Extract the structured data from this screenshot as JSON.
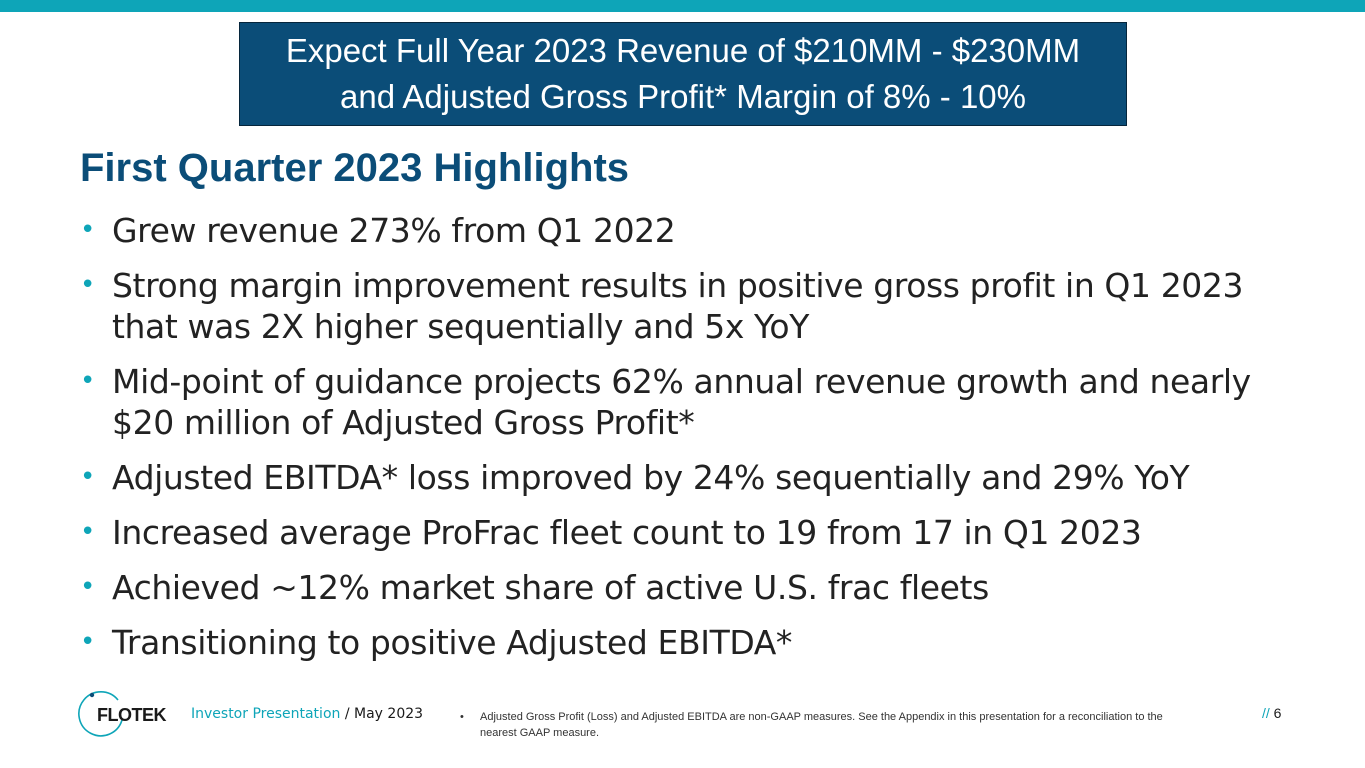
{
  "colors": {
    "accent": "#0ea5b8",
    "navy": "#0b4d78"
  },
  "banner": {
    "line1": "Expect Full Year 2023 Revenue of $210MM - $230MM",
    "line2": "and Adjusted Gross Profit* Margin of 8% - 10%"
  },
  "title": "First Quarter 2023 Highlights",
  "bullets": [
    {
      "line1": "Grew revenue 273% from Q1 2022"
    },
    {
      "line1": "Strong margin improvement results in positive gross profit in Q1 2023",
      "line2": "that was 2X higher sequentially and 5x YoY"
    },
    {
      "line1": "Mid-point of guidance projects 62% annual revenue growth and nearly",
      "line2": "$20 million of Adjusted Gross Profit*"
    },
    {
      "line1": "Adjusted EBITDA* loss improved by 24% sequentially and 29% YoY"
    },
    {
      "line1": "Increased average ProFrac fleet count to 19 from 17 in Q1 2023"
    },
    {
      "line1": "Achieved ~12% market share of active U.S. frac fleets"
    },
    {
      "line1": "Transitioning to positive Adjusted EBITDA*"
    }
  ],
  "bullet_glyph": "•",
  "footer": {
    "logo_text": "FLOTEK",
    "presentation": "Investor Presentation",
    "separator": " / ",
    "date": "May 2023",
    "footnote_bullet": "•",
    "footnote": "Adjusted Gross Profit (Loss) and Adjusted EBITDA are non-GAAP measures.  See the Appendix in this presentation for a reconciliation to the nearest GAAP measure.",
    "page_slashes": "//",
    "page_number": "6"
  }
}
